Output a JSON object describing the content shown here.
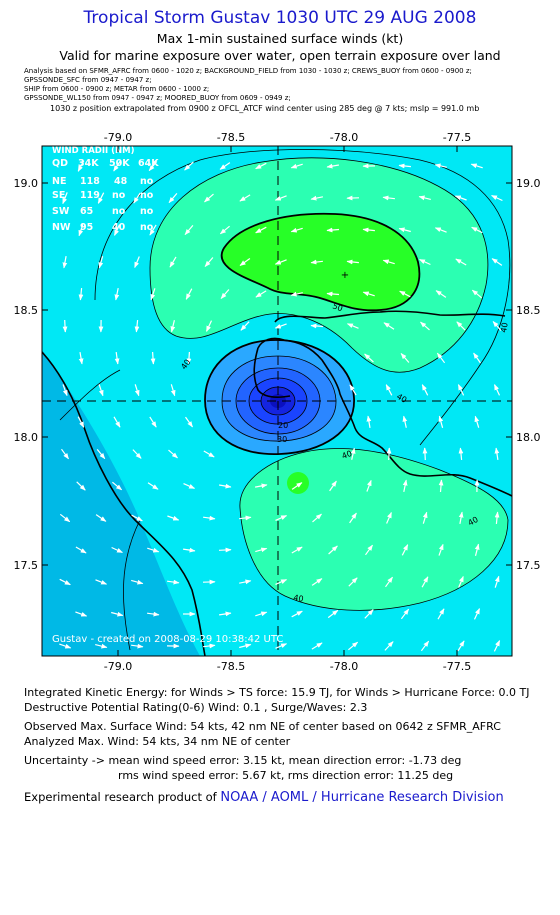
{
  "title": "Tropical Storm Gustav 1030 UTC 29 AUG 2008",
  "subtitle1": "Max 1-min sustained surface winds (kt)",
  "subtitle2": "Valid for marine exposure over water, open terrain exposure over land",
  "metadata_lines": [
    "Analysis based on  SFMR_AFRC from 0600 - 1020 z;  BACKGROUND_FIELD from 1030 - 1030 z;  CREWS_BUOY from 0600 - 0900 z;",
    "GPSSONDE_SFC from 0947 - 0947 z;",
    "SHIP from 0600 - 0900 z;  METAR from 0600 - 1000 z;",
    "GPSSONDE_WL150 from 0947 - 0947 z;  MOORED_BUOY from 0609 - 0949 z;"
  ],
  "position_note": "1030 z position extrapolated from 0900 z OFCL_ATCF wind center using 285 deg @ 7 kts;  mslp = 991.0 mb",
  "wind_radii": {
    "header": "WIND RADII (NM)",
    "columns": [
      "QD",
      "34K",
      "50K",
      "64K"
    ],
    "rows": [
      [
        "NE",
        "118",
        "48",
        "no"
      ],
      [
        "SE",
        "119",
        "no",
        "no"
      ],
      [
        "SW",
        "65",
        "no",
        "no"
      ],
      [
        "NW",
        "95",
        "40",
        "no"
      ]
    ]
  },
  "map": {
    "lon_ticks": [
      "-79.0",
      "-78.5",
      "-78.0",
      "-77.5"
    ],
    "lat_ticks": [
      "19.0",
      "18.5",
      "18.0",
      "17.5"
    ],
    "contour_labels": [
      "50",
      "40",
      "40",
      "40",
      "40",
      "40",
      "30",
      "20",
      "40"
    ],
    "credit": "Gustav - created on 2008-08-29 10:38:42 UTC",
    "colors": {
      "wind_lt30": "#00b9e6",
      "wind_30_40": "#00e8f5",
      "wind_40_50": "#2bffb2",
      "wind_50_64": "#27ff27",
      "core_ring_1": "#2aa8ff",
      "core_ring_2": "#2b86ff",
      "core_ring_3": "#2264ff",
      "core_ring_4": "#1a44ff",
      "core_ring_5": "#1424e0"
    }
  },
  "info": {
    "ike": "Integrated Kinetic Energy:  for Winds > TS force: 15.9 TJ,  for Winds > Hurricane Force: 0.0 TJ",
    "dpr": "Destructive Potential Rating(0-6)   Wind: 0.1 , Surge/Waves: 2.3",
    "obs_max": "Observed Max. Surface Wind: 54 kts, 42 nm NE of center based on 0642 z SFMR_AFRC",
    "ana_max": "Analyzed Max. Wind: 54 kts, 34 nm NE of center",
    "uncert1": "Uncertainty -> mean wind speed error: 3.15 kt,   mean direction error:  -1.73 deg",
    "uncert2": "rms wind speed error: 5.67 kt,   rms direction error: 11.25 deg",
    "footer_prefix": "Experimental research product of",
    "footer_link": "NOAA / AOML / Hurricane Research Division"
  }
}
